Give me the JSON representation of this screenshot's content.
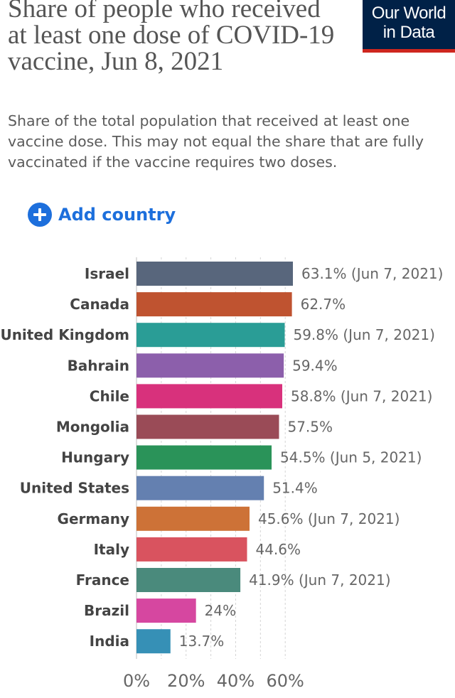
{
  "header": {
    "title": "Share of people who received at least one dose of COVID-19 vaccine, Jun 8, 2021",
    "subtitle": "Share of the total population that received at least one vaccine dose. This may not equal the share that are fully vaccinated if the vaccine requires two doses.",
    "logo_line1": "Our World",
    "logo_line2": "in Data"
  },
  "controls": {
    "add_country_label": "Add country",
    "add_country_icon": "plus-circle-icon"
  },
  "colors": {
    "logo_bg": "#002147",
    "logo_accent": "#ce261e",
    "link": "#1d6fdc"
  },
  "chart_data": {
    "type": "bar",
    "orientation": "horizontal",
    "title": "",
    "xlabel": "",
    "ylabel": "",
    "xlim": [
      0,
      63.1
    ],
    "xticks": [
      0,
      20,
      40,
      60
    ],
    "xtick_labels": [
      "0%",
      "20%",
      "40%",
      "60%"
    ],
    "grid": "vertical dashed",
    "categories": [
      "Israel",
      "Canada",
      "United Kingdom",
      "Bahrain",
      "Chile",
      "Mongolia",
      "Hungary",
      "United States",
      "Germany",
      "Italy",
      "France",
      "Brazil",
      "India"
    ],
    "values": [
      63.1,
      62.7,
      59.8,
      59.4,
      58.8,
      57.5,
      54.5,
      51.4,
      45.6,
      44.6,
      41.9,
      24,
      13.7
    ],
    "value_labels": [
      "63.1% (Jun 7, 2021)",
      "62.7%",
      "59.8% (Jun 7, 2021)",
      "59.4%",
      "58.8% (Jun 7, 2021)",
      "57.5%",
      "54.5% (Jun 5, 2021)",
      "51.4%",
      "45.6% (Jun 7, 2021)",
      "44.6%",
      "41.9% (Jun 7, 2021)",
      "24%",
      "13.7%"
    ],
    "colors": [
      "#58667c",
      "#bf5330",
      "#2a9d96",
      "#8c5fab",
      "#d8317c",
      "#9a4b57",
      "#2a9359",
      "#6480b0",
      "#cd7237",
      "#d9535f",
      "#4a8a7c",
      "#d647a0",
      "#3690b6"
    ]
  }
}
